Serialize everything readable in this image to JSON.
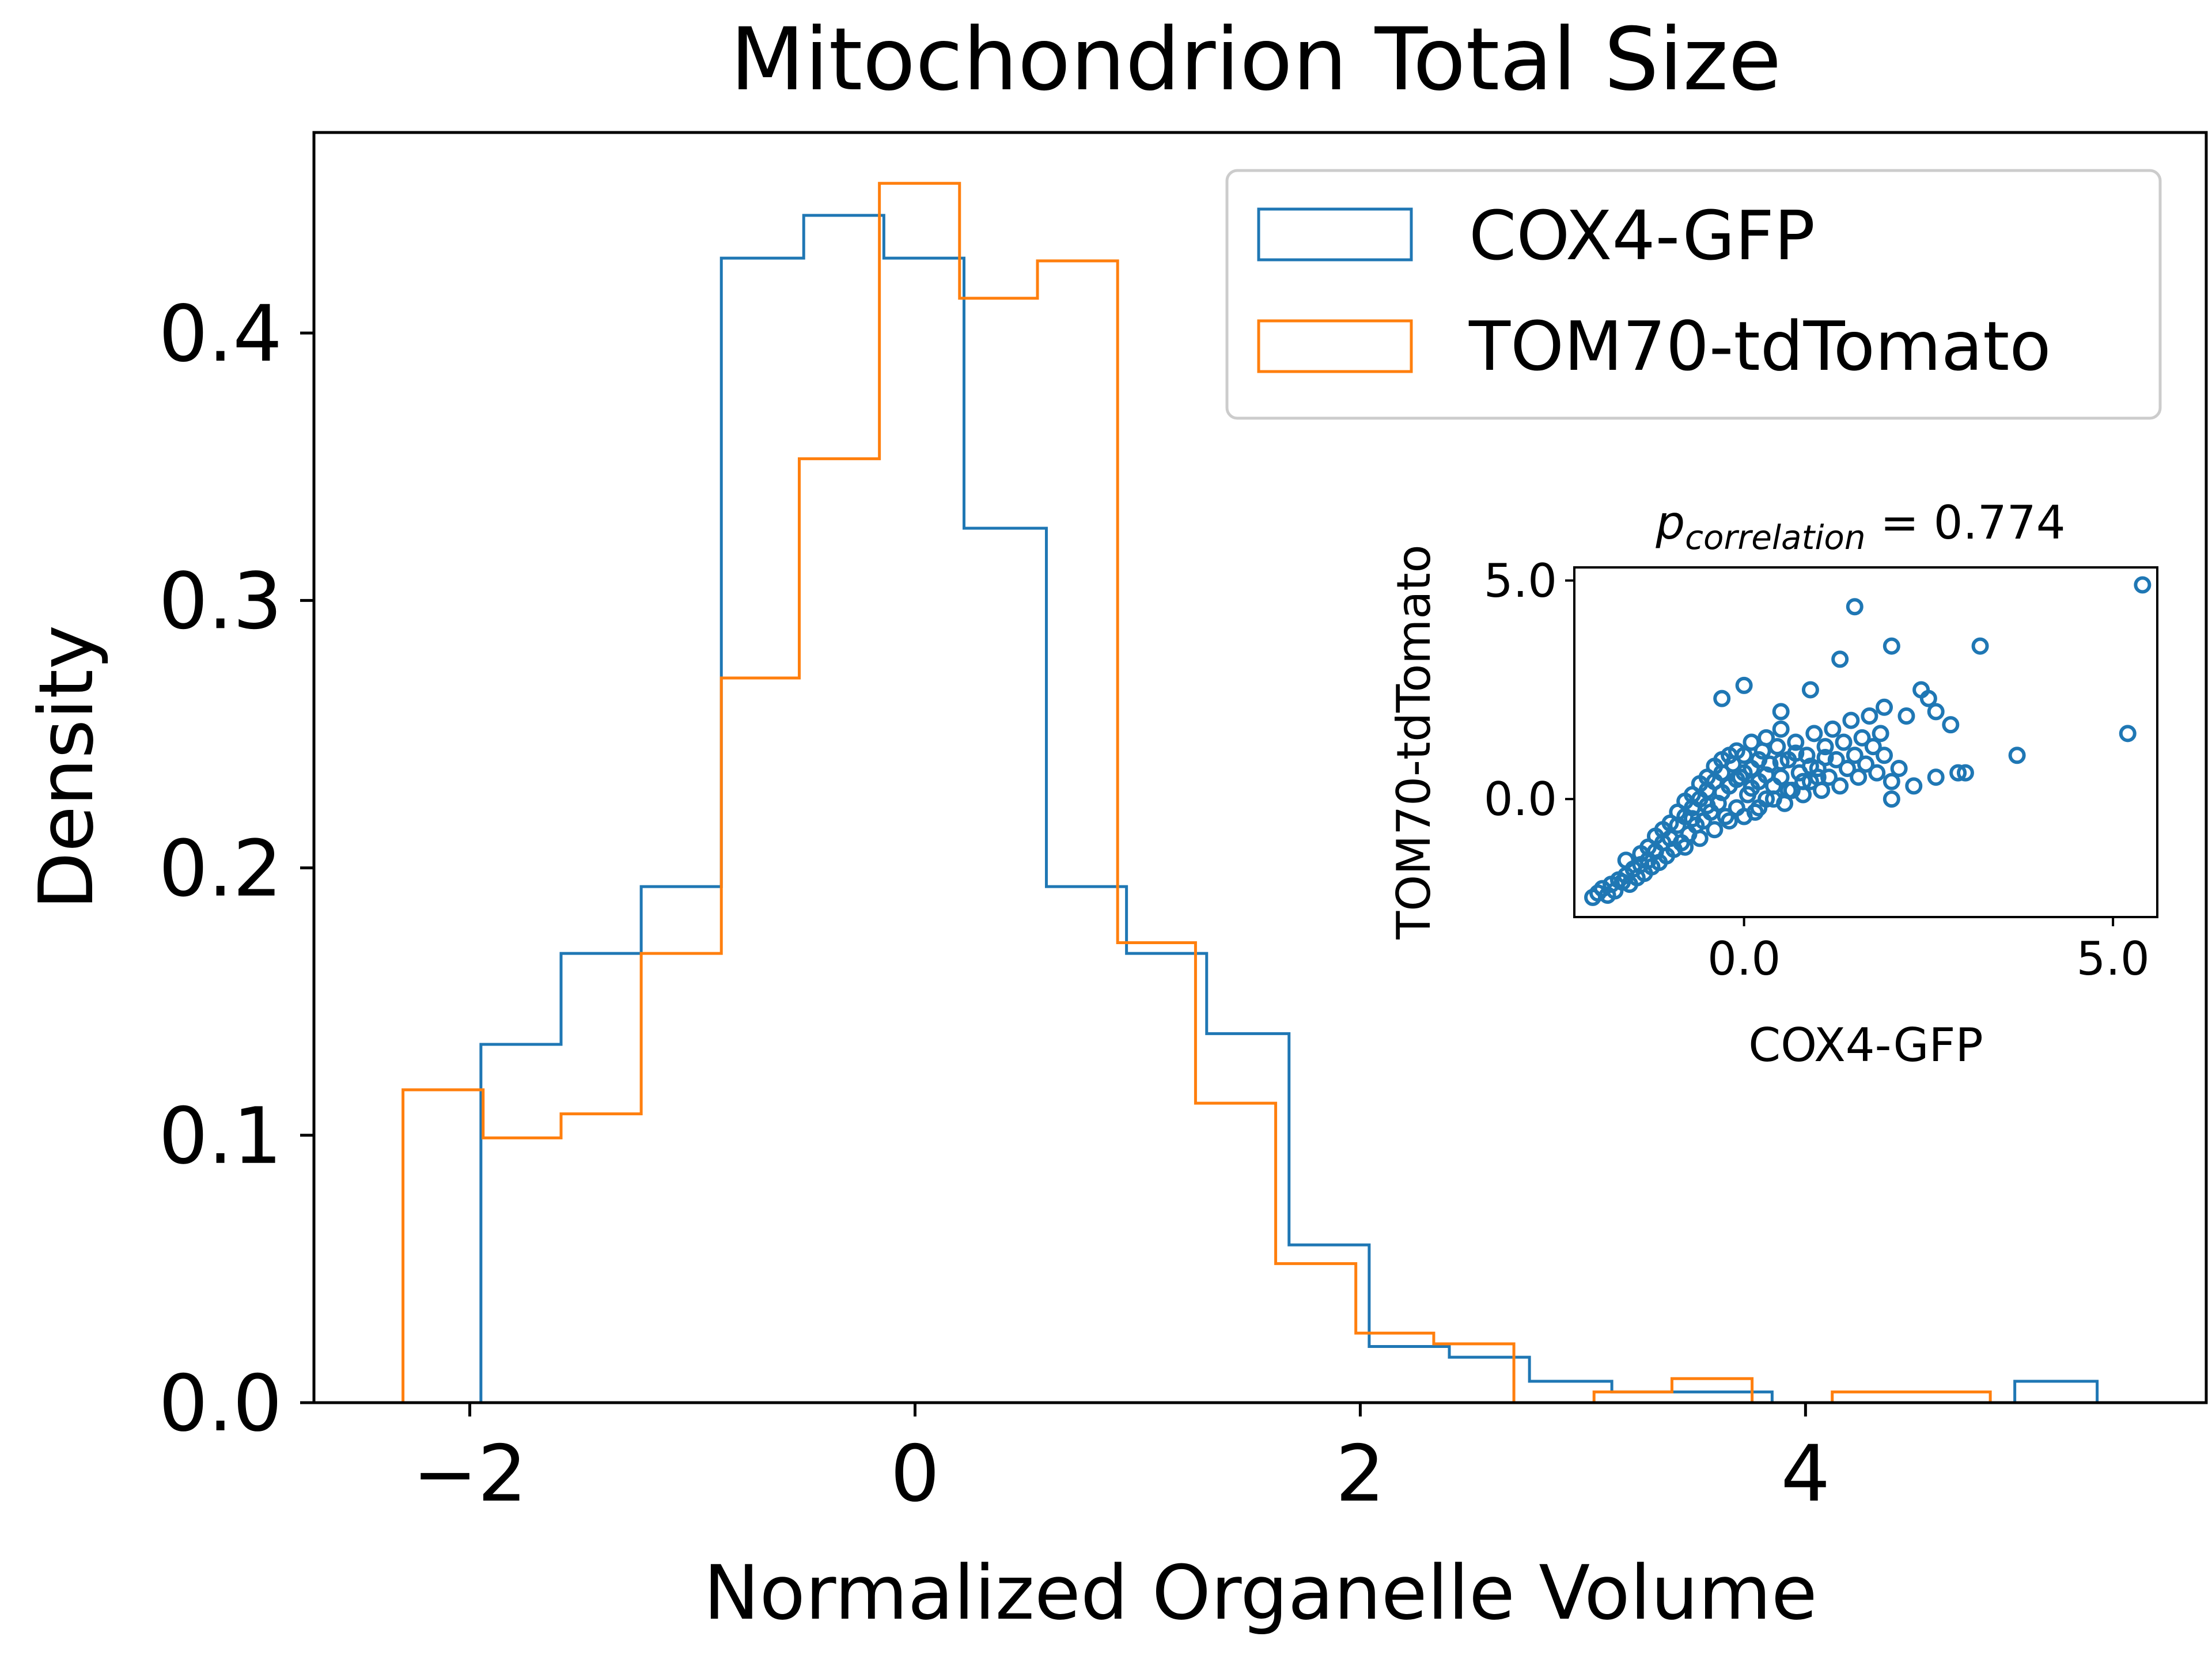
{
  "chart_data": [
    {
      "type": "histogram",
      "title": "Mitochondrion Total Size",
      "xlabel": "Normalized Organelle Volume",
      "ylabel": "Density",
      "xlim": [
        -2.7,
        5.8
      ],
      "ylim": [
        0,
        0.475
      ],
      "xticks": [
        -2,
        0,
        2,
        4
      ],
      "xtick_labels": [
        "−2",
        "0",
        "2",
        "4"
      ],
      "yticks": [
        0.0,
        0.1,
        0.2,
        0.3,
        0.4
      ],
      "ytick_labels": [
        "0.0",
        "0.1",
        "0.2",
        "0.3",
        "0.4"
      ],
      "grid": false,
      "legend_position": "top-right",
      "series": [
        {
          "name": "COX4-GFP",
          "color": "#1f77b4",
          "bin_edges": [
            -1.95,
            -1.59,
            -1.23,
            -0.87,
            -0.5,
            -0.14,
            0.22,
            0.59,
            0.95,
            1.31,
            1.68,
            2.04,
            2.4,
            2.76,
            3.13,
            3.49,
            3.85,
            4.22,
            4.58,
            4.94,
            5.31
          ],
          "densities": [
            0.134,
            0.168,
            0.193,
            0.428,
            0.444,
            0.428,
            0.327,
            0.193,
            0.168,
            0.138,
            0.059,
            0.021,
            0.017,
            0.008,
            0.004,
            0.004,
            0.0,
            0.0,
            0.0,
            0.008
          ]
        },
        {
          "name": "TOM70-tdTomato",
          "color": "#ff7f0e",
          "bin_edges": [
            -2.3,
            -1.94,
            -1.59,
            -1.23,
            -0.87,
            -0.52,
            -0.16,
            0.2,
            0.55,
            0.91,
            1.26,
            1.62,
            1.98,
            2.33,
            2.69,
            3.05,
            3.4,
            3.76,
            4.12,
            4.47,
            4.83
          ],
          "densities": [
            0.117,
            0.099,
            0.108,
            0.168,
            0.271,
            0.353,
            0.456,
            0.413,
            0.427,
            0.172,
            0.112,
            0.052,
            0.026,
            0.022,
            0.0,
            0.004,
            0.009,
            0.0,
            0.004,
            0.004
          ]
        }
      ]
    },
    {
      "type": "scatter",
      "title_main": "p",
      "title_sub": "correlation",
      "title_value": " = 0.774",
      "xlabel": "COX4-GFP",
      "ylabel": "TOM70-tdTomato",
      "xlim": [
        -2.3,
        5.6
      ],
      "ylim": [
        -2.7,
        5.3
      ],
      "xticks": [
        0.0,
        5.0
      ],
      "xtick_labels": [
        "0.0",
        "5.0"
      ],
      "yticks": [
        0.0,
        5.0
      ],
      "ytick_labels": [
        "0.0",
        "5.0"
      ],
      "grid": false,
      "color": "#1f77b4",
      "points": [
        [
          -2.05,
          -2.25
        ],
        [
          -1.98,
          -2.15
        ],
        [
          -1.92,
          -2.05
        ],
        [
          -1.85,
          -2.2
        ],
        [
          -1.8,
          -1.95
        ],
        [
          -1.75,
          -2.1
        ],
        [
          -1.7,
          -1.85
        ],
        [
          -1.65,
          -1.9
        ],
        [
          -1.6,
          -1.75
        ],
        [
          -1.55,
          -1.95
        ],
        [
          -1.5,
          -1.6
        ],
        [
          -1.45,
          -1.8
        ],
        [
          -1.4,
          -1.5
        ],
        [
          -1.35,
          -1.7
        ],
        [
          -1.3,
          -1.4
        ],
        [
          -1.25,
          -1.55
        ],
        [
          -1.2,
          -1.2
        ],
        [
          -1.15,
          -1.45
        ],
        [
          -1.1,
          -1.0
        ],
        [
          -1.05,
          -1.3
        ],
        [
          -1.0,
          -0.9
        ],
        [
          -0.95,
          -1.15
        ],
        [
          -0.9,
          -0.6
        ],
        [
          -0.85,
          -1.0
        ],
        [
          -0.8,
          -0.4
        ],
        [
          -0.75,
          -0.8
        ],
        [
          -0.7,
          -0.2
        ],
        [
          -0.65,
          -0.6
        ],
        [
          -0.6,
          0.0
        ],
        [
          -0.55,
          -0.5
        ],
        [
          -0.5,
          0.2
        ],
        [
          -0.45,
          -0.3
        ],
        [
          -0.4,
          0.4
        ],
        [
          -0.35,
          -0.1
        ],
        [
          -0.3,
          0.6
        ],
        [
          -0.25,
          -0.4
        ],
        [
          -0.2,
          0.3
        ],
        [
          -0.15,
          0.8
        ],
        [
          -0.1,
          -0.2
        ],
        [
          -0.05,
          0.5
        ],
        [
          0.0,
          1.0
        ],
        [
          0.05,
          0.1
        ],
        [
          0.1,
          0.7
        ],
        [
          0.15,
          -0.3
        ],
        [
          0.2,
          0.4
        ],
        [
          0.25,
          1.1
        ],
        [
          0.3,
          0.0
        ],
        [
          0.35,
          0.8
        ],
        [
          0.4,
          0.3
        ],
        [
          0.45,
          1.2
        ],
        [
          0.5,
          0.5
        ],
        [
          0.55,
          -0.1
        ],
        [
          0.6,
          0.9
        ],
        [
          0.65,
          0.2
        ],
        [
          0.7,
          1.3
        ],
        [
          0.75,
          0.6
        ],
        [
          0.8,
          0.1
        ],
        [
          0.85,
          1.0
        ],
        [
          0.9,
          0.4
        ],
        [
          0.95,
          1.5
        ],
        [
          1.0,
          0.7
        ],
        [
          1.05,
          0.2
        ],
        [
          1.1,
          1.2
        ],
        [
          1.15,
          0.5
        ],
        [
          1.2,
          1.6
        ],
        [
          1.25,
          0.9
        ],
        [
          1.3,
          0.3
        ],
        [
          1.35,
          1.3
        ],
        [
          1.4,
          0.7
        ],
        [
          1.45,
          1.8
        ],
        [
          1.5,
          1.0
        ],
        [
          1.55,
          0.5
        ],
        [
          1.6,
          1.4
        ],
        [
          1.65,
          0.8
        ],
        [
          1.7,
          1.9
        ],
        [
          1.75,
          1.2
        ],
        [
          1.8,
          0.6
        ],
        [
          1.85,
          1.5
        ],
        [
          1.9,
          1.0
        ],
        [
          2.0,
          0.4
        ],
        [
          -1.3,
          -1.1
        ],
        [
          -1.1,
          -0.7
        ],
        [
          -0.9,
          -0.3
        ],
        [
          -0.7,
          0.1
        ],
        [
          -0.5,
          0.5
        ],
        [
          -0.3,
          0.9
        ],
        [
          -0.1,
          1.1
        ],
        [
          0.1,
          1.3
        ],
        [
          0.3,
          1.4
        ],
        [
          0.5,
          1.6
        ],
        [
          -0.8,
          -1.1
        ],
        [
          -0.6,
          -0.9
        ],
        [
          -0.4,
          -0.7
        ],
        [
          -0.2,
          -0.5
        ],
        [
          0.0,
          -0.4
        ],
        [
          0.2,
          -0.2
        ],
        [
          0.4,
          0.0
        ],
        [
          0.6,
          0.2
        ],
        [
          0.8,
          0.4
        ],
        [
          1.0,
          0.5
        ],
        [
          -1.6,
          -1.4
        ],
        [
          -1.4,
          -1.25
        ],
        [
          -1.2,
          -0.85
        ],
        [
          -1.0,
          -0.55
        ],
        [
          -0.8,
          -0.05
        ],
        [
          -0.6,
          0.35
        ],
        [
          -0.4,
          0.75
        ],
        [
          -0.2,
          1.0
        ],
        [
          0.0,
          0.6
        ],
        [
          0.2,
          0.9
        ],
        [
          -0.7,
          -0.45
        ],
        [
          -0.5,
          -0.15
        ],
        [
          -0.3,
          0.15
        ],
        [
          -0.1,
          0.45
        ],
        [
          0.1,
          0.25
        ],
        [
          0.3,
          0.55
        ],
        [
          0.5,
          0.85
        ],
        [
          0.7,
          1.05
        ],
        [
          0.9,
          0.75
        ],
        [
          1.1,
          0.95
        ],
        [
          -0.3,
          2.3
        ],
        [
          0.0,
          2.6
        ],
        [
          0.5,
          2.0
        ],
        [
          0.9,
          2.5
        ],
        [
          1.3,
          3.2
        ],
        [
          1.5,
          4.4
        ],
        [
          2.0,
          3.5
        ],
        [
          2.4,
          2.5
        ],
        [
          2.6,
          2.0
        ],
        [
          2.8,
          1.7
        ],
        [
          3.2,
          3.5
        ],
        [
          2.2,
          1.9
        ],
        [
          2.5,
          2.3
        ],
        [
          1.9,
          2.1
        ],
        [
          2.1,
          0.7
        ],
        [
          2.6,
          0.5
        ],
        [
          2.9,
          0.6
        ],
        [
          3.0,
          0.6
        ],
        [
          2.3,
          0.3
        ],
        [
          2.0,
          0.0
        ],
        [
          3.7,
          1.0
        ],
        [
          5.2,
          1.5
        ],
        [
          5.4,
          4.9
        ]
      ]
    }
  ]
}
